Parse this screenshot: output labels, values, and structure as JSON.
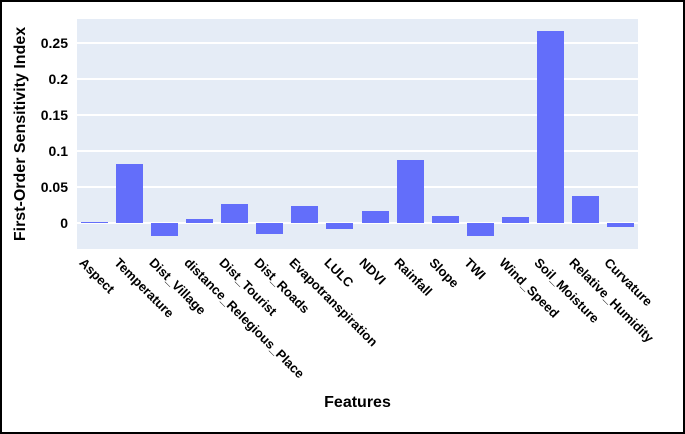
{
  "chart_data": {
    "type": "bar",
    "title": "",
    "xlabel": "Features",
    "ylabel": "First-Order Sensitivity Index",
    "categories": [
      "Aspect",
      "Temperature",
      "Dist_Village",
      "distance_Relegious_Place",
      "Dist_Tourist",
      "Dist_Roads",
      "Evapotranspiration",
      "LULC",
      "NDVI",
      "Rainfall",
      "Slope",
      "TWI",
      "Wind_Speed",
      "Soil_Moisture",
      "Relative_Humidity",
      "Curvature"
    ],
    "values": [
      0.001,
      0.082,
      -0.018,
      0.006,
      0.026,
      -0.015,
      0.024,
      -0.009,
      0.017,
      0.088,
      0.01,
      -0.018,
      0.008,
      0.266,
      0.037,
      -0.005
    ],
    "yticks": [
      0,
      0.05,
      0.1,
      0.15,
      0.2,
      0.25
    ],
    "ytick_labels": [
      "0",
      "0.05",
      "0.1",
      "0.15",
      "0.2",
      "0.25"
    ],
    "ylim": [
      -0.036,
      0.283
    ],
    "grid": true,
    "legend": false,
    "x_tick_angle_deg": 45,
    "colors": {
      "bar": "#636efa",
      "plot_background": "#e5ecf6",
      "gridline": "#ffffff",
      "text": "#000000",
      "frame_border": "#000000",
      "page_background": "#ffffff"
    }
  }
}
